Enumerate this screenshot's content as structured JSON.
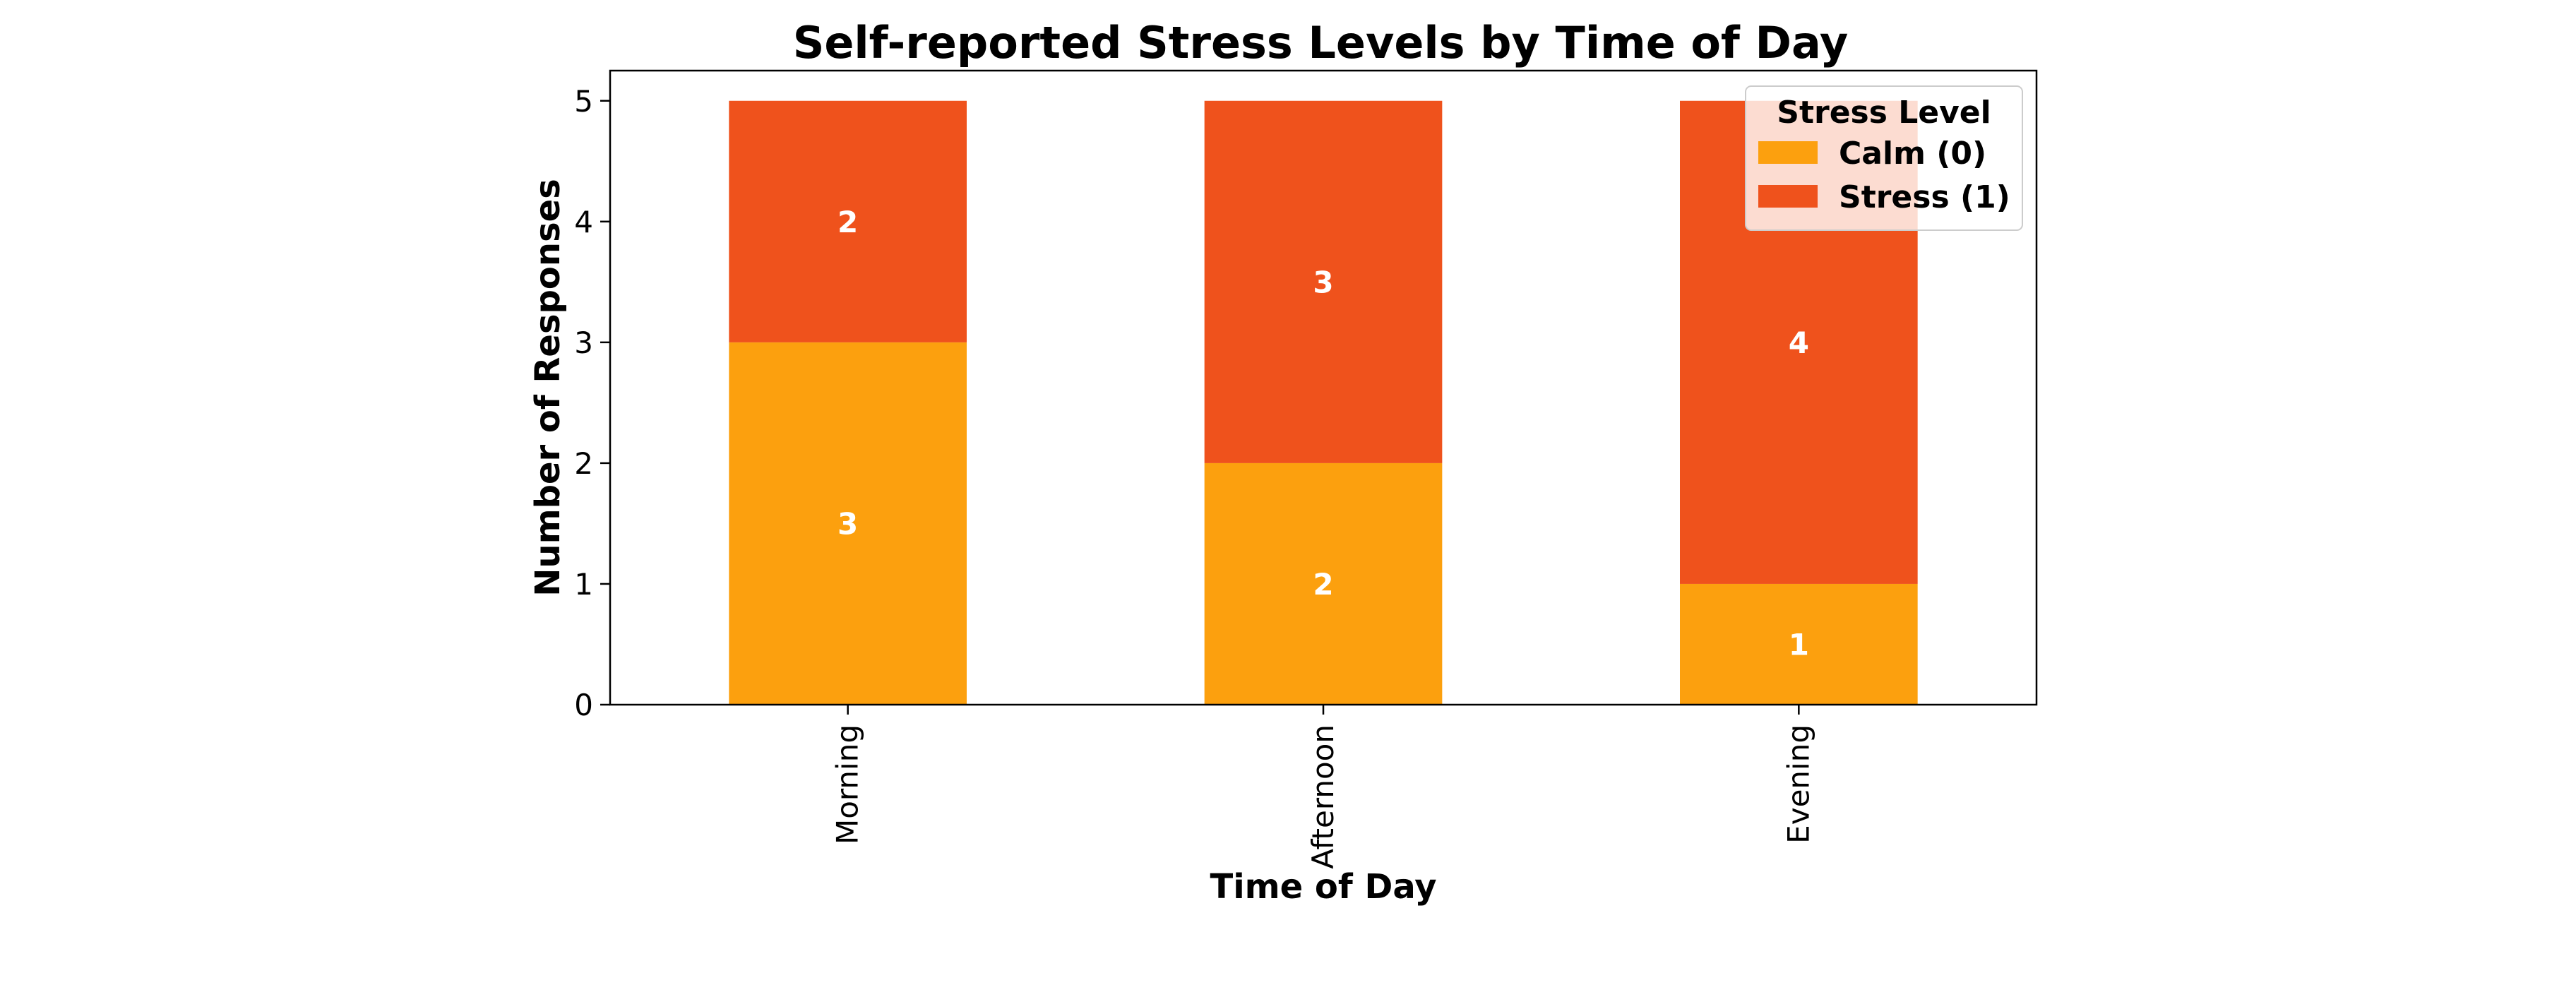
{
  "chart_data": {
    "type": "bar",
    "stacked": true,
    "title": "Self-reported Stress Levels by Time of Day",
    "xlabel": "Time of Day",
    "ylabel": "Number of Responses",
    "categories": [
      "Morning",
      "Afternoon",
      "Evening"
    ],
    "series": [
      {
        "name": "Calm (0)",
        "values": [
          3,
          2,
          1
        ],
        "color": "#FCA00E"
      },
      {
        "name": "Stress (1)",
        "values": [
          2,
          3,
          4
        ],
        "color": "#EF521C"
      }
    ],
    "ylim": [
      0,
      5.25
    ],
    "yticks": [
      0,
      1,
      2,
      3,
      4,
      5
    ],
    "grid": false,
    "legend": {
      "title": "Stress Level",
      "position": "top-right"
    }
  }
}
